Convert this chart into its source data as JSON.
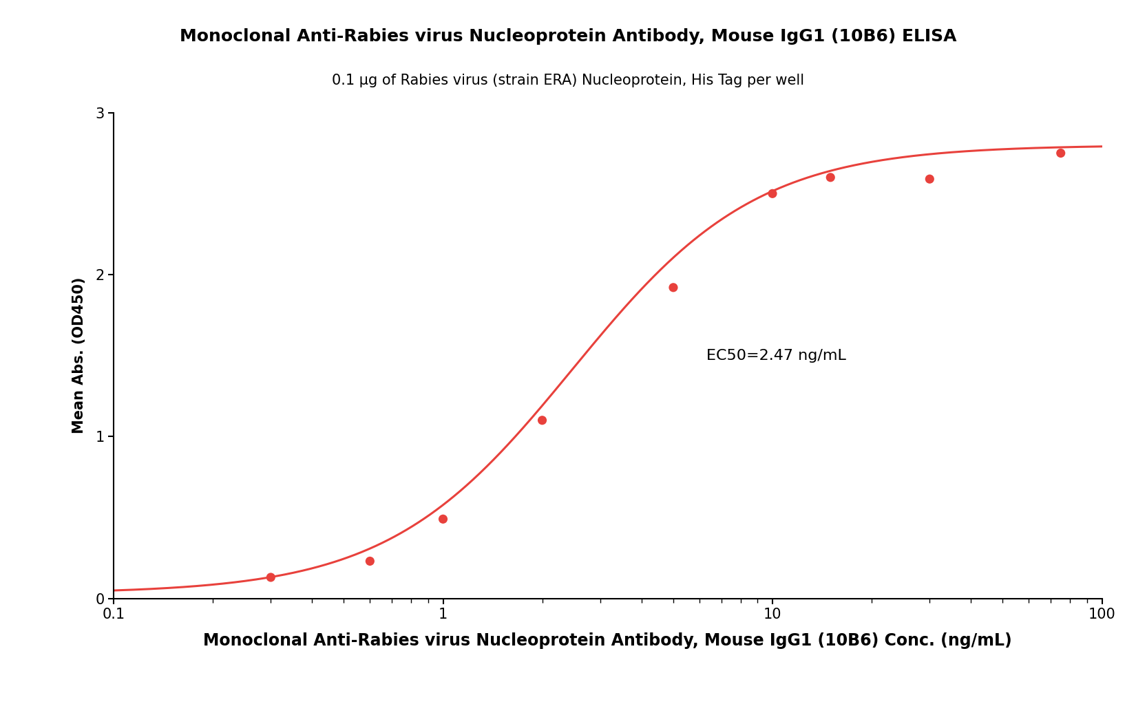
{
  "title": "Monoclonal Anti-Rabies virus Nucleoprotein Antibody, Mouse IgG1 (10B6) ELISA",
  "subtitle": "0.1 μg of Rabies virus (strain ERA) Nucleoprotein, His Tag per well",
  "xlabel": "Monoclonal Anti-Rabies virus Nucleoprotein Antibody, Mouse IgG1 (10B6) Conc. (ng/mL)",
  "ylabel": "Mean Abs. (OD450)",
  "ec50_label": "EC50=2.47 ng/mL",
  "ec50_value": 2.47,
  "data_x": [
    0.3,
    0.6,
    1.0,
    2.0,
    5.0,
    10.0,
    15.0,
    30.0,
    75.0
  ],
  "data_y": [
    0.13,
    0.23,
    0.49,
    1.1,
    1.92,
    2.5,
    2.6,
    2.59,
    2.75
  ],
  "curve_color": "#E8413C",
  "dot_color": "#E8413C",
  "xlim_log": [
    0.1,
    100
  ],
  "ylim": [
    0,
    3.0
  ],
  "yticks": [
    0,
    1,
    2,
    3
  ],
  "xtick_positions": [
    0.1,
    1,
    10,
    100
  ],
  "top_param": 2.8,
  "bottom_param": 0.03,
  "hill_slope": 1.55,
  "background_color": "#ffffff",
  "title_fontsize": 18,
  "subtitle_fontsize": 15,
  "xlabel_fontsize": 17,
  "ylabel_fontsize": 15,
  "tick_fontsize": 15,
  "ec50_fontsize": 16
}
